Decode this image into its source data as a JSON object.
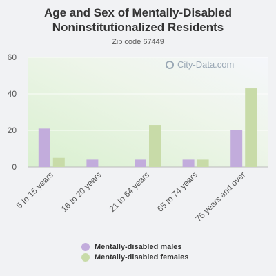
{
  "title": "Age and Sex of Mentally-Disabled Noninstitutionalized Residents",
  "subtitle": "Zip code 67449",
  "watermark": "City-Data.com",
  "colors": {
    "males": "#c2acdc",
    "females": "#c8dba8"
  },
  "chart_data": {
    "type": "bar",
    "categories": [
      "5 to 15 years",
      "16 to 20 years",
      "21 to 64 years",
      "65 to 74 years",
      "75 years and over"
    ],
    "series": [
      {
        "name": "Mentally-disabled males",
        "values": [
          21,
          4,
          4,
          4,
          20
        ]
      },
      {
        "name": "Mentally-disabled females",
        "values": [
          5,
          0,
          23,
          4,
          43
        ]
      }
    ],
    "yticks": [
      0,
      20,
      40,
      60
    ],
    "ylim": [
      0,
      60
    ],
    "grid": true,
    "legend": "bottom"
  }
}
